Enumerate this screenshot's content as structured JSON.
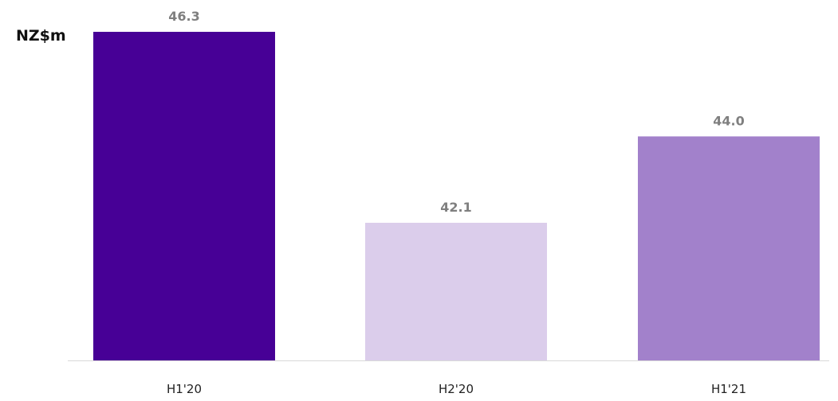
{
  "chart_data": {
    "type": "bar",
    "unit_label": "NZ$m",
    "categories": [
      "H1'20",
      "H2'20",
      "H1'21"
    ],
    "values": [
      46.3,
      42.1,
      44.0
    ],
    "value_labels": [
      "46.3",
      "42.1",
      "44.0"
    ],
    "bar_colors": [
      "#470096",
      "#dbcdeb",
      "#a281cb"
    ],
    "axis_color": "#d9d9d9",
    "grid": false,
    "legend": "none"
  }
}
